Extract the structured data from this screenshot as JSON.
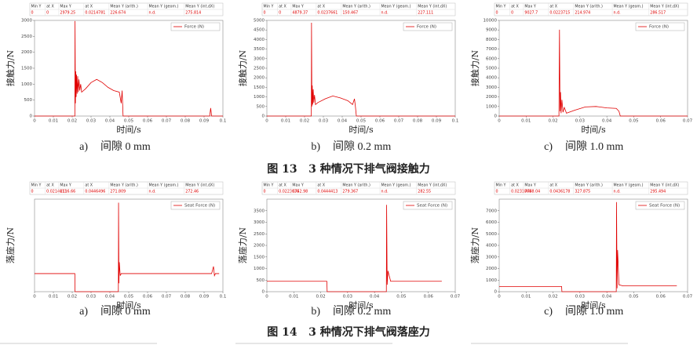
{
  "chart_data": [
    {
      "type": "line",
      "panel_label": "a)",
      "caption": "间隙 0 mm",
      "y_label": "接触力/N",
      "x_label": "时间/s",
      "stats": {
        "headers": [
          "Min Y",
          "at X",
          "Max Y",
          "at X",
          "Mean Y (arith.)",
          "Mean Y (geom.)",
          "Mean Y (int.dX)"
        ],
        "values": [
          "0",
          "0",
          "2979.25",
          "0.0214781",
          "226.674",
          "n.d.",
          "275.814"
        ]
      },
      "x": [
        0,
        0.0214,
        0.0215,
        0.0217,
        0.0219,
        0.0221,
        0.0223,
        0.0226,
        0.0229,
        0.0232,
        0.0236,
        0.024,
        0.0245,
        0.025,
        0.027,
        0.03,
        0.033,
        0.036,
        0.039,
        0.042,
        0.045,
        0.046,
        0.0465,
        0.047,
        0.093,
        0.0935,
        0.094,
        0.1
      ],
      "series": [
        {
          "name": "Force (N)",
          "color": "#e00000",
          "values": [
            0,
            0,
            2979,
            400,
            1400,
            600,
            1300,
            700,
            1250,
            750,
            1150,
            800,
            1000,
            750,
            850,
            1050,
            1150,
            1050,
            900,
            800,
            750,
            400,
            800,
            0,
            0,
            250,
            0,
            0
          ]
        }
      ],
      "xlim": [
        0,
        0.1
      ],
      "xticks": [
        0,
        0.01,
        0.02,
        0.03,
        0.04,
        0.05,
        0.06,
        0.07,
        0.08,
        0.09,
        0.1
      ],
      "ylim": [
        0,
        3000
      ],
      "yticks": [
        0,
        500,
        1000,
        1500,
        2000,
        2500,
        3000
      ]
    },
    {
      "type": "line",
      "panel_label": "b)",
      "caption": "间隙 0.2 mm",
      "y_label": "接触力/N",
      "x_label": "时间/s",
      "stats": {
        "headers": [
          "Min Y",
          "at X",
          "Max Y",
          "at X",
          "Mean Y (arith.)",
          "Mean Y (geom.)",
          "Mean Y (int.dX)"
        ],
        "values": [
          "0",
          "0",
          "4879.37",
          "0.0237661",
          "150.467",
          "n.d.",
          "227.111"
        ]
      },
      "x": [
        0,
        0.0236,
        0.0237,
        0.0239,
        0.0241,
        0.0243,
        0.0246,
        0.0249,
        0.0253,
        0.0258,
        0.027,
        0.031,
        0.035,
        0.039,
        0.043,
        0.0455,
        0.0465,
        0.047,
        0.0475,
        0.048,
        0.1
      ],
      "series": [
        {
          "name": "Force (N)",
          "color": "#e00000",
          "values": [
            0,
            0,
            4879,
            500,
            1600,
            600,
            1400,
            700,
            1100,
            600,
            700,
            900,
            1050,
            950,
            800,
            600,
            900,
            500,
            0,
            0,
            0
          ]
        }
      ],
      "xlim": [
        0,
        0.1
      ],
      "xticks": [
        0,
        0.01,
        0.02,
        0.03,
        0.04,
        0.05,
        0.06,
        0.07,
        0.08,
        0.09,
        0.1
      ],
      "ylim": [
        0,
        5000
      ],
      "yticks": [
        0,
        500,
        1000,
        1500,
        2000,
        2500,
        3000,
        3500,
        4000,
        4500,
        5000
      ]
    },
    {
      "type": "line",
      "panel_label": "c)",
      "caption": "间隙 1.0 mm",
      "y_label": "接触力/N",
      "x_label": "时间/s",
      "stats": {
        "headers": [
          "Min Y",
          "at X",
          "Max Y",
          "at X",
          "Mean Y (arith.)",
          "Mean Y (geom.)",
          "Mean Y (int.dX)"
        ],
        "values": [
          "0",
          "0",
          "9027.7",
          "0.0223715",
          "214.974",
          "n.d.",
          "286.517"
        ]
      },
      "x": [
        0,
        0.0222,
        0.0224,
        0.0226,
        0.0228,
        0.023,
        0.0233,
        0.0237,
        0.0242,
        0.025,
        0.028,
        0.032,
        0.036,
        0.04,
        0.0435,
        0.0445,
        0.045,
        0.07
      ],
      "series": [
        {
          "name": "Force (N)",
          "color": "#e00000",
          "values": [
            0,
            0,
            9028,
            500,
            2500,
            300,
            1700,
            400,
            900,
            300,
            600,
            950,
            1000,
            850,
            800,
            500,
            0,
            0
          ]
        }
      ],
      "xlim": [
        0,
        0.07
      ],
      "xticks": [
        0,
        0.01,
        0.02,
        0.03,
        0.04,
        0.05,
        0.06,
        0.07
      ],
      "ylim": [
        0,
        10000
      ],
      "yticks": [
        0,
        1000,
        2000,
        3000,
        4000,
        5000,
        6000,
        7000,
        8000,
        9000,
        10000
      ]
    },
    {
      "type": "line",
      "panel_label": "a)",
      "caption": "间隙 0 mm",
      "y_label": "落座力/N",
      "x_label": "时间/s",
      "stats": {
        "headers": [
          "Min Y",
          "at X",
          "Max Y",
          "at X",
          "Mean Y (arith.)",
          "Mean Y (geom.)",
          "Mean Y (int.dX)"
        ],
        "values": [
          "0",
          "0.0214613",
          "2116.66",
          "0.0446496",
          "271.809",
          "n.d.",
          "272.46"
        ]
      },
      "x": [
        0,
        0.0214,
        0.0215,
        0.0445,
        0.0446,
        0.0448,
        0.045,
        0.0455,
        0.046,
        0.094,
        0.095,
        0.0955,
        0.096,
        0.098
      ],
      "series": [
        {
          "name": "Seat Force (N)",
          "color": "#e00000",
          "values": [
            430,
            430,
            0,
            0,
            2117,
            200,
            700,
            380,
            430,
            430,
            600,
            380,
            430,
            430
          ]
        }
      ],
      "xlim": [
        0,
        0.1
      ],
      "xticks": [
        0,
        0.01,
        0.02,
        0.03,
        0.04,
        0.05,
        0.06,
        0.07,
        0.08,
        0.09,
        0.1
      ],
      "ylim": [
        0,
        2200
      ]
    },
    {
      "type": "line",
      "panel_label": "b)",
      "caption": "间隙 0.2 mm",
      "y_label": "落座力/N",
      "x_label": "时间/s",
      "stats": {
        "headers": [
          "Min Y",
          "at X",
          "Max Y",
          "at X",
          "Mean Y (arith.)",
          "Mean Y (geom.)",
          "Mean Y (int.dX)"
        ],
        "values": [
          "0",
          "0.0223634",
          "3752.98",
          "0.0444413",
          "279.367",
          "n.d.",
          "282.55"
        ]
      },
      "x": [
        0,
        0.0223,
        0.0224,
        0.0444,
        0.0445,
        0.0447,
        0.045,
        0.046,
        0.065
      ],
      "series": [
        {
          "name": "Seat Force (N)",
          "color": "#e00000",
          "values": [
            450,
            450,
            0,
            0,
            3753,
            300,
            900,
            450,
            450
          ]
        }
      ],
      "xlim": [
        0,
        0.07
      ],
      "xticks": [
        0,
        0.01,
        0.02,
        0.03,
        0.04,
        0.05,
        0.06,
        0.07
      ],
      "ylim": [
        0,
        4000
      ],
      "yticks": [
        0,
        500,
        1000,
        1500,
        2000,
        2500,
        3000,
        3500
      ]
    },
    {
      "type": "line",
      "panel_label": "c)",
      "caption": "间隙 1.0 mm",
      "y_label": "落座力/N",
      "x_label": "时间/s",
      "stats": {
        "headers": [
          "Min Y",
          "at X",
          "Max Y",
          "at X",
          "Mean Y (arith.)",
          "Mean Y (geom.)",
          "Mean Y (int.dX)"
        ],
        "values": [
          "0",
          "0.0231868",
          "7748.04",
          "0.0436178",
          "327.875",
          "n.d.",
          "295.494"
        ]
      },
      "x": [
        0,
        0.0232,
        0.0233,
        0.0435,
        0.0436,
        0.0438,
        0.044,
        0.0445,
        0.046,
        0.066
      ],
      "series": [
        {
          "name": "Seat Force (N)",
          "color": "#e00000",
          "values": [
            450,
            450,
            0,
            0,
            7748,
            300,
            3600,
            600,
            500,
            500
          ]
        }
      ],
      "xlim": [
        0,
        0.07
      ],
      "xticks": [
        0,
        0.01,
        0.02,
        0.03,
        0.04,
        0.05,
        0.06,
        0.07
      ],
      "ylim": [
        0,
        8000
      ],
      "yticks": [
        0,
        1000,
        2000,
        3000,
        4000,
        5000,
        6000,
        7000
      ]
    }
  ],
  "figure_captions": [
    "图 13   3 种情况下排气阀接触力",
    "图 14   3 种情况下排气阀落座力"
  ]
}
